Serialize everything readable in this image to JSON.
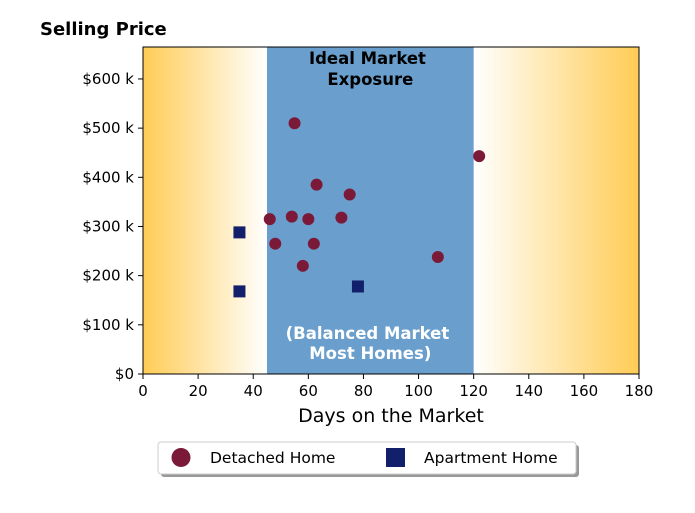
{
  "chart_data": {
    "type": "scatter",
    "title": "Selling Price",
    "xlabel": "Days on the Market",
    "ylabel": "",
    "xlim": [
      0,
      180
    ],
    "ylim": [
      0,
      665000
    ],
    "xticks": [
      0,
      20,
      40,
      60,
      80,
      100,
      120,
      140,
      160,
      180
    ],
    "xtick_labels": [
      "0",
      "20",
      "40",
      "60",
      "80",
      "100",
      "120",
      "140",
      "160",
      "180"
    ],
    "yticks": [
      0,
      100000,
      200000,
      300000,
      400000,
      500000,
      600000
    ],
    "ytick_labels": [
      "$0",
      "$100 k",
      "$200 k",
      "$300 k",
      "$400 k",
      "$500 k",
      "$600 k"
    ],
    "band": {
      "x_range": [
        45,
        120
      ],
      "color": "#6a9fcd",
      "label_top": [
        "Ideal Market",
        "Exposure"
      ],
      "label_bottom": [
        "(Balanced Market",
        "Most Homes)"
      ]
    },
    "background_gradient": {
      "edge_color": "#ffcc55",
      "center_color": "#ffffff"
    },
    "legend_position": "bottom-center",
    "series": [
      {
        "name": "Detached Home",
        "marker": "circle",
        "color": "#7b1a38",
        "points": [
          [
            46,
            315000
          ],
          [
            48,
            265000
          ],
          [
            54,
            320000
          ],
          [
            55,
            510000
          ],
          [
            58,
            220000
          ],
          [
            60,
            315000
          ],
          [
            62,
            265000
          ],
          [
            63,
            385000
          ],
          [
            72,
            318000
          ],
          [
            75,
            365000
          ],
          [
            107,
            238000
          ],
          [
            122,
            443000
          ]
        ]
      },
      {
        "name": "Apartment Home",
        "marker": "square",
        "color": "#12206b",
        "points": [
          [
            35,
            288000
          ],
          [
            35,
            168000
          ],
          [
            78,
            178000
          ]
        ]
      }
    ]
  }
}
